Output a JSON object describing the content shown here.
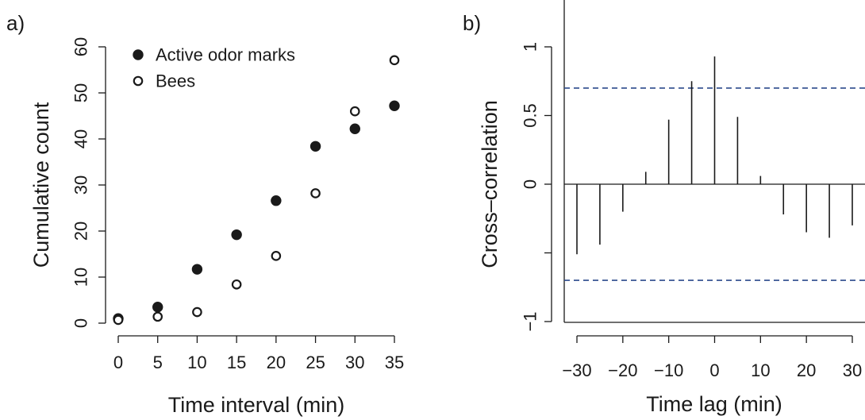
{
  "chart_data": [
    {
      "panel_label": "a)",
      "type": "scatter",
      "xlabel": "Time interval (min)",
      "ylabel": "Cumulative count",
      "xlim": [
        0,
        35
      ],
      "ylim": [
        0,
        60
      ],
      "xticks": [
        0,
        5,
        10,
        15,
        20,
        25,
        30,
        35
      ],
      "yticks": [
        0,
        10,
        20,
        30,
        40,
        50,
        60
      ],
      "legend_position": "top-left",
      "series": [
        {
          "name": "Active odor marks",
          "marker": "filled-circle",
          "x": [
            0,
            5,
            10,
            15,
            20,
            25,
            30,
            35
          ],
          "y": [
            1,
            3.5,
            11.7,
            19.2,
            26.6,
            38.4,
            42.2,
            47.2
          ]
        },
        {
          "name": "Bees",
          "marker": "open-circle",
          "x": [
            0,
            5,
            10,
            15,
            20,
            25,
            30,
            35
          ],
          "y": [
            0.7,
            1.4,
            2.4,
            8.4,
            14.6,
            28.2,
            46,
            57.1
          ]
        }
      ]
    },
    {
      "panel_label": "b)",
      "type": "bar",
      "style": "stem",
      "xlabel": "Time lag (min)",
      "ylabel": "Cross–correlation",
      "xlim": [
        -30,
        30
      ],
      "ylim": [
        -1,
        1
      ],
      "xticks": [
        -30,
        -20,
        -10,
        0,
        10,
        20,
        30
      ],
      "xtick_labels": [
        "−30",
        "−20",
        "−10",
        "0",
        "10",
        "20",
        "30"
      ],
      "yticks": [
        -1,
        -0.5,
        0,
        0.5,
        1
      ],
      "ytick_labels": [
        "−1",
        "",
        "0",
        "0.5",
        "1"
      ],
      "confidence_band": [
        -0.7,
        0.7
      ],
      "confidence_color": "#2b4a8c",
      "x": [
        -30,
        -25,
        -20,
        -15,
        -10,
        -5,
        0,
        5,
        10,
        15,
        20,
        25,
        30
      ],
      "y": [
        -0.51,
        -0.44,
        -0.2,
        0.09,
        0.47,
        0.75,
        0.93,
        0.49,
        0.06,
        -0.22,
        -0.35,
        -0.39,
        -0.3
      ]
    }
  ]
}
